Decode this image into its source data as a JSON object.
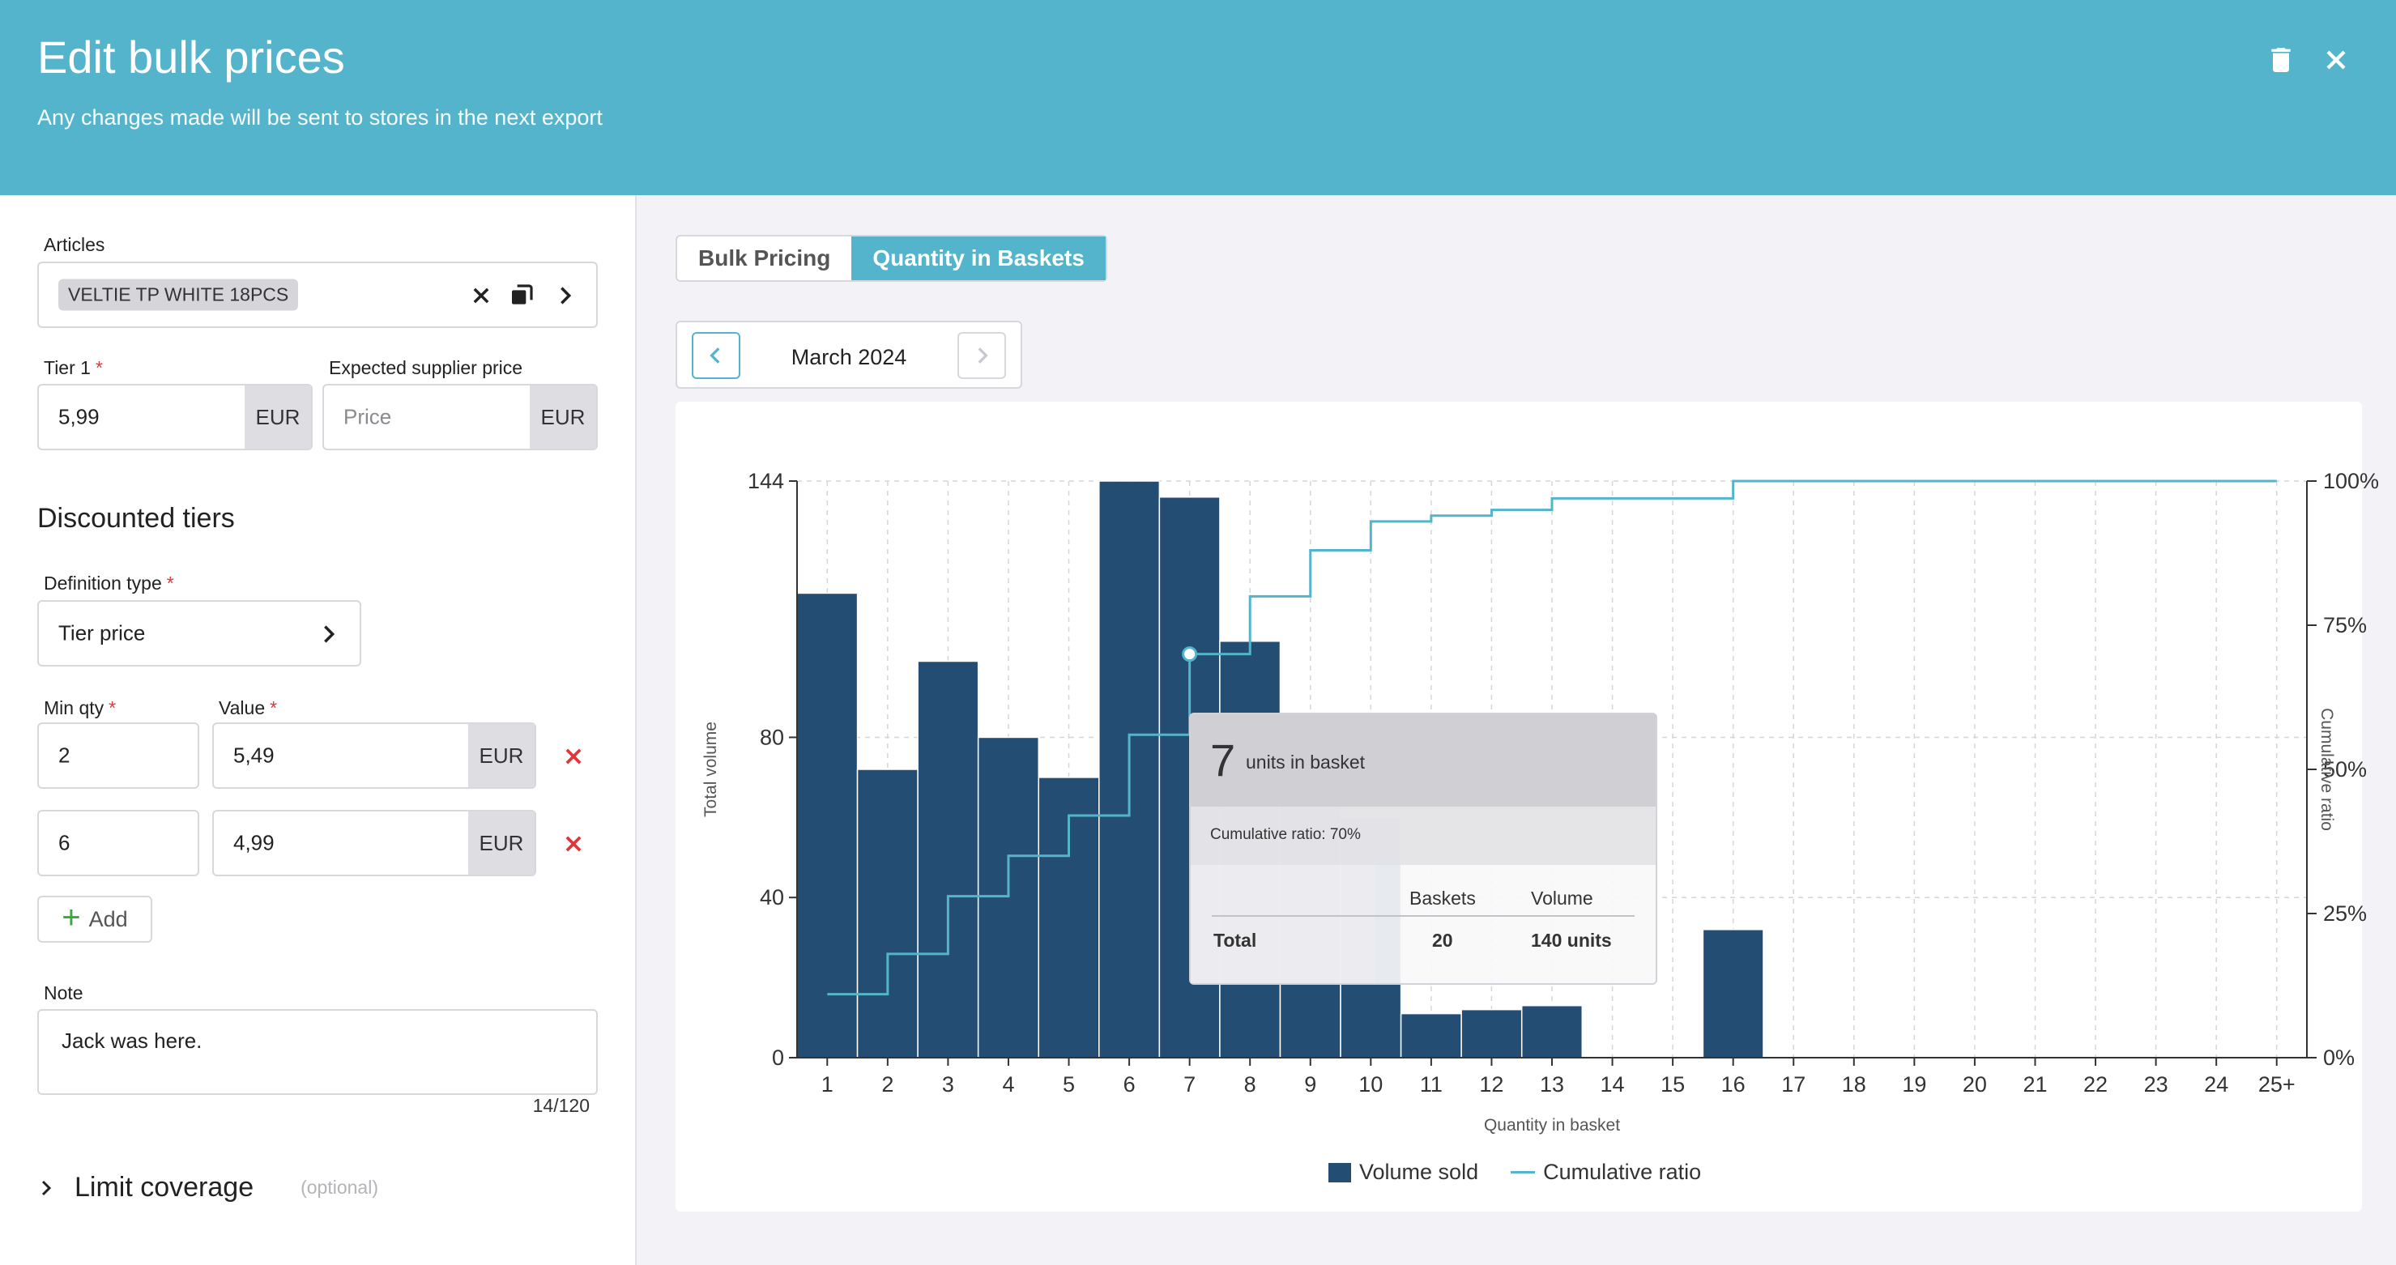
{
  "header": {
    "title": "Edit bulk prices",
    "subtitle": "Any changes made will be sent to stores in the next export"
  },
  "form": {
    "articles_label": "Articles",
    "article_chip": "VELTIE TP WHITE 18PCS",
    "tier1_label": "Tier 1",
    "tier1_value": "5,99",
    "currency": "EUR",
    "supplier_label": "Expected supplier price",
    "supplier_placeholder": "Price",
    "discounted_title": "Discounted tiers",
    "definition_label": "Definition type",
    "definition_value": "Tier price",
    "min_qty_label": "Min qty",
    "value_label": "Value",
    "tiers": [
      {
        "min_qty": "2",
        "value": "5,49"
      },
      {
        "min_qty": "6",
        "value": "4,99"
      }
    ],
    "add_label": "Add",
    "note_label": "Note",
    "note_value": "Jack was here.",
    "note_counter": "14/120",
    "limit_label": "Limit coverage",
    "limit_optional": "(optional)",
    "required_marker": "*"
  },
  "tabs": [
    "Bulk Pricing",
    "Quantity in Baskets"
  ],
  "active_tab": "Quantity in Baskets",
  "month": "March 2024",
  "tooltip": {
    "quantity": "7",
    "units_text": "units in basket",
    "ratio_text": "Cumulative ratio: 70%",
    "col_baskets": "Baskets",
    "col_volume": "Volume",
    "row_label": "Total",
    "baskets": "20",
    "volume": "140 units"
  },
  "colors": {
    "accent": "#54b4cc",
    "bar": "#234d72",
    "danger": "#e2353a",
    "add_green": "#3aa840"
  },
  "chart_data": {
    "type": "bar",
    "categories": [
      "1",
      "2",
      "3",
      "4",
      "5",
      "6",
      "7",
      "8",
      "9",
      "10",
      "11",
      "12",
      "13",
      "14",
      "15",
      "16",
      "17",
      "18",
      "19",
      "20",
      "21",
      "22",
      "23",
      "24",
      "25+"
    ],
    "series": [
      {
        "name": "Volume sold",
        "type": "bar",
        "axis": "left",
        "values": [
          116,
          72,
          99,
          80,
          70,
          144,
          140,
          104,
          80,
          60,
          11,
          12,
          13,
          0,
          0,
          32,
          0,
          0,
          0,
          0,
          0,
          0,
          0,
          0,
          0
        ]
      },
      {
        "name": "Cumulative ratio",
        "type": "step-line",
        "axis": "right",
        "values": [
          11,
          18,
          28,
          35,
          42,
          56,
          70,
          80,
          88,
          93,
          94,
          95,
          97,
          97,
          97,
          100,
          100,
          100,
          100,
          100,
          100,
          100,
          100,
          100,
          100
        ]
      }
    ],
    "xlabel": "Quantity in basket",
    "ylabel": "Total volume",
    "y2label": "Cumulative ratio",
    "ylim": [
      0,
      144
    ],
    "yticks": [
      0,
      40,
      80,
      144
    ],
    "y2lim": [
      0,
      100
    ],
    "y2ticks": [
      "0%",
      "25%",
      "50%",
      "75%",
      "100%"
    ],
    "highlight_category": "7",
    "legend": [
      "Volume sold",
      "Cumulative ratio"
    ],
    "legend_position": "bottom-center"
  }
}
